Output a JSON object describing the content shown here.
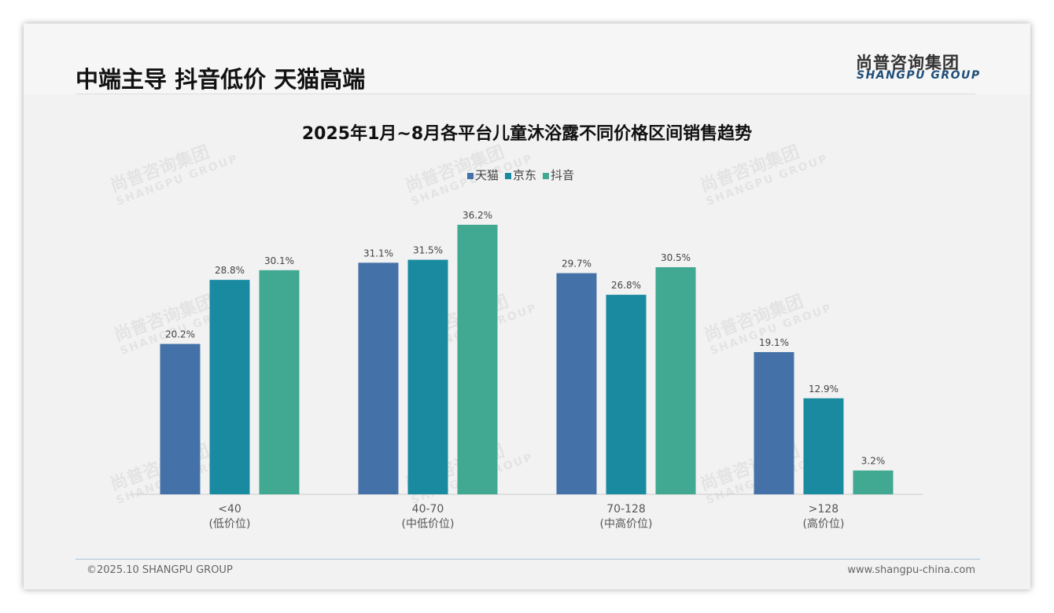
{
  "header": {
    "title": "中端主导 抖音低价 天猫高端",
    "logo_cn": "尚普咨询集团",
    "logo_en": "SHANGPU GROUP"
  },
  "footer": {
    "copyright": "©2025.10 SHANGPU GROUP",
    "website": "www.shangpu-china.com"
  },
  "watermark": {
    "cn": "尚普咨询集团",
    "en": "SHANGPU GROUP"
  },
  "chart_data": {
    "type": "bar",
    "title": "2025年1月~8月各平台儿童沐浴露不同价格区间销售趋势",
    "categories": [
      "<40",
      "40-70",
      "70-128",
      ">128"
    ],
    "category_sublabels": [
      "(低价位)",
      "(中低价位)",
      "(中高价位)",
      "(高价位)"
    ],
    "series": [
      {
        "name": "天猫",
        "color": "#4472a8",
        "values": [
          20.2,
          31.1,
          29.7,
          19.1
        ]
      },
      {
        "name": "京东",
        "color": "#1a8aa0",
        "values": [
          28.8,
          31.5,
          26.8,
          12.9
        ]
      },
      {
        "name": "抖音",
        "color": "#41a892",
        "values": [
          30.1,
          36.2,
          30.5,
          3.2
        ]
      }
    ],
    "unit": "%",
    "ylim": [
      0,
      40
    ],
    "legend": "top",
    "grid": false
  }
}
